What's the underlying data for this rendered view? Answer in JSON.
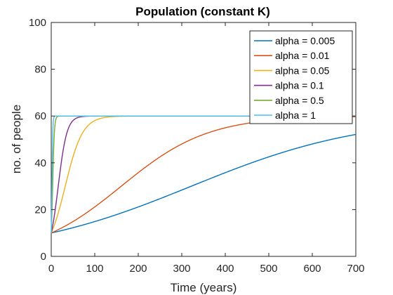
{
  "chart_data": {
    "type": "line",
    "title": "Population (constant K)",
    "xlabel": "Time (years)",
    "ylabel": "no. of people",
    "xlim": [
      0,
      700
    ],
    "ylim": [
      0,
      100
    ],
    "xticks": [
      0,
      100,
      200,
      300,
      400,
      500,
      600,
      700
    ],
    "yticks": [
      0,
      20,
      40,
      60,
      80,
      100
    ],
    "grid": false,
    "legend_position": "top-right",
    "model": {
      "P0": 10,
      "K": 60
    },
    "series": [
      {
        "name": "alpha = 0.005",
        "alpha": 0.005,
        "color": "#0072BD"
      },
      {
        "name": "alpha = 0.01",
        "alpha": 0.01,
        "color": "#D95319"
      },
      {
        "name": "alpha = 0.05",
        "alpha": 0.05,
        "color": "#EDB120"
      },
      {
        "name": "alpha = 0.1",
        "alpha": 0.1,
        "color": "#7E2F8E"
      },
      {
        "name": "alpha = 0.5",
        "alpha": 0.5,
        "color": "#77AC30"
      },
      {
        "name": "alpha = 1",
        "alpha": 1,
        "color": "#4DBEEE"
      }
    ]
  }
}
